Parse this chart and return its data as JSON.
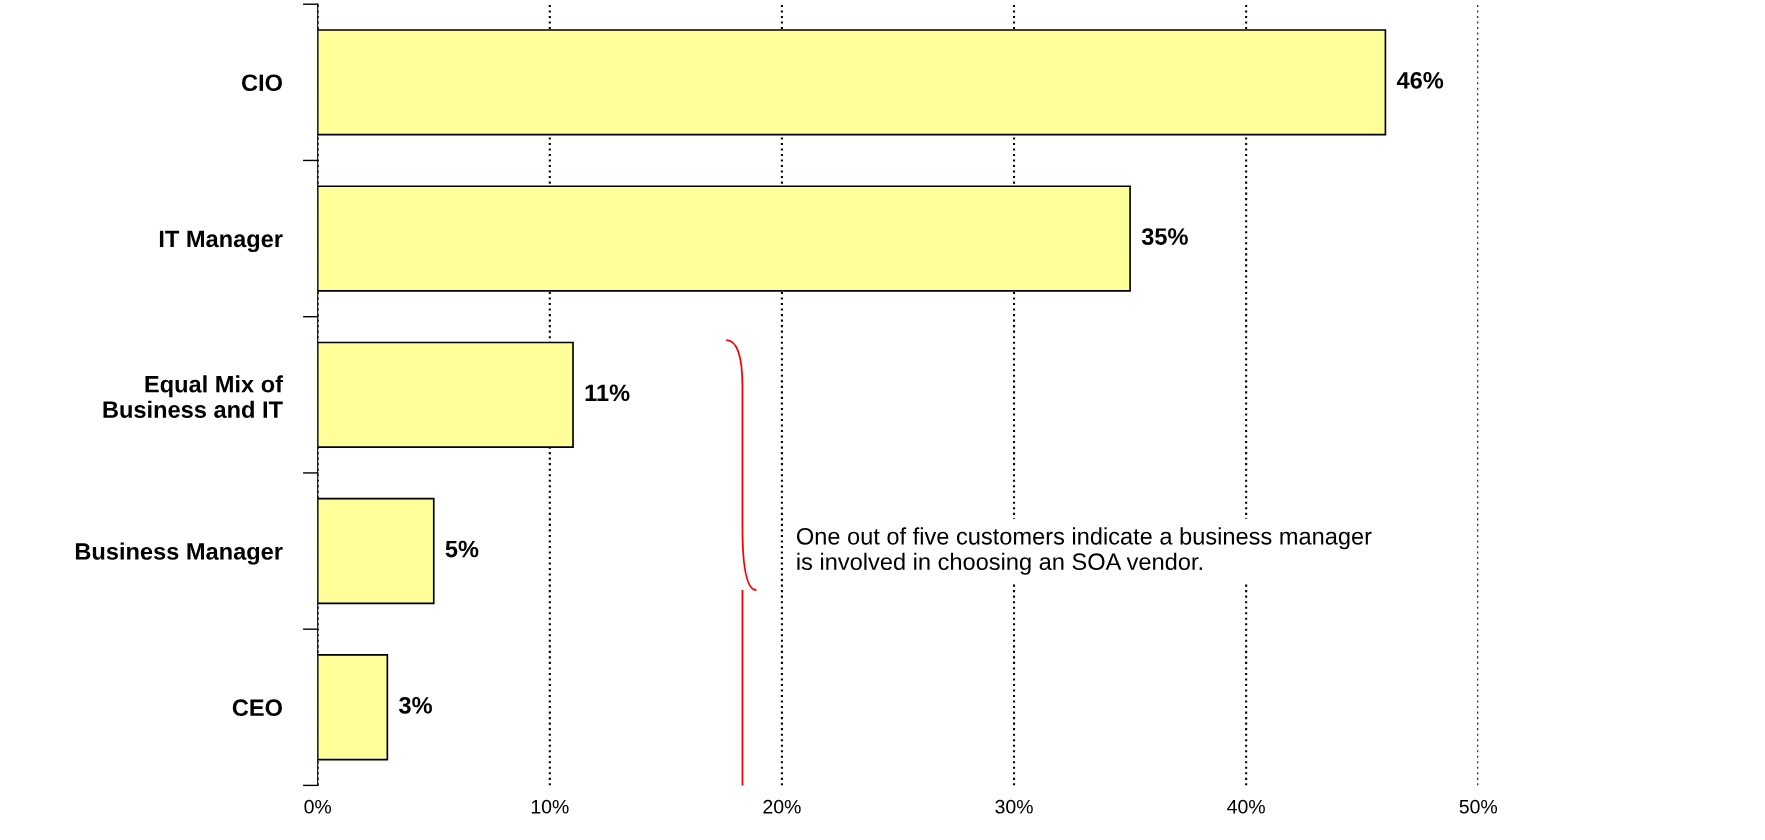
{
  "chart_data": {
    "type": "bar",
    "orientation": "horizontal",
    "categories": [
      "CIO",
      "IT Manager",
      "Equal Mix of\nBusiness and IT",
      "Business Manager",
      "CEO"
    ],
    "values": [
      46,
      35,
      11,
      5,
      3
    ],
    "color": "#ffff99",
    "value_labels": [
      "46%",
      "35%",
      "11%",
      "5%",
      "3%"
    ],
    "xlim": [
      0,
      50
    ],
    "xticks": [
      {
        "value": 0,
        "label": "0%"
      },
      {
        "value": 10,
        "label": "10%"
      },
      {
        "value": 20,
        "label": "20%"
      },
      {
        "value": 30,
        "label": "30%"
      },
      {
        "value": 40,
        "label": "40%"
      },
      {
        "value": 50,
        "label": "50%"
      }
    ],
    "grid": "x",
    "line_style": "dotted",
    "annotations": [
      "One out of five customers indicate a business manager\nis involved in choosing an SOA vendor."
    ]
  }
}
